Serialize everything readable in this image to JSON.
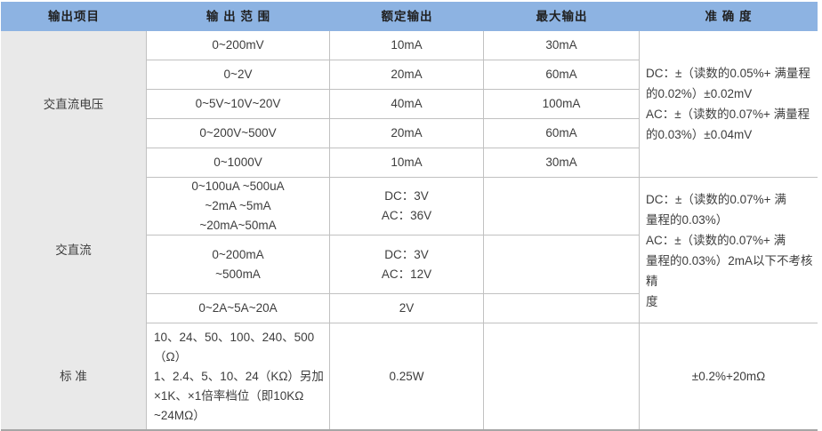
{
  "table": {
    "headers": {
      "item": "输出项目",
      "range": "输 出 范 围",
      "rated": "额定输出",
      "max": "最大输出",
      "accuracy": "准 确 度"
    },
    "sections": [
      {
        "item": "交直流电压",
        "rows": [
          {
            "range": "0~200mV",
            "rated": "10mA",
            "max": "30mA"
          },
          {
            "range": "0~2V",
            "rated": "20mA",
            "max": "60mA"
          },
          {
            "range": "0~5V~10V~20V",
            "rated": "40mA",
            "max": "100mA"
          },
          {
            "range": "0~200V~500V",
            "rated": "20mA",
            "max": "60mA"
          },
          {
            "range": "0~1000V",
            "rated": "10mA",
            "max": "30mA"
          }
        ],
        "accuracy": "DC：±（读数的0.05%+ 满量程\n的0.02%）±0.02mV\nAC：±（读数的0.07%+ 满量程\n的0.03%）±0.04mV"
      },
      {
        "item": "交直流",
        "rows": [
          {
            "range": "0~100uA ~500uA\n~2mA ~5mA\n~20mA~50mA",
            "rated": "DC：3V\nAC：36V",
            "max": ""
          },
          {
            "range": "0~200mA\n~500mA",
            "rated": "DC：3V\nAC：12V",
            "max": ""
          },
          {
            "range": "0~2A~5A~20A",
            "rated": "2V",
            "max": ""
          }
        ],
        "accuracy": "DC：±（读数的0.07%+ 满\n量程的0.03%）\nAC：±（读数的0.07%+ 满\n量程的0.03%）2mA以下不考核精\n度"
      },
      {
        "item": "标  准",
        "rows": [
          {
            "range": "10、24、50、100、240、500\n（Ω）\n1、2.4、5、10、24（KΩ）另加\n×1K、×1倍率档位（即10KΩ\n~24MΩ）",
            "rated": "0.25W",
            "max": ""
          }
        ],
        "accuracy": "±0.2%+20mΩ"
      }
    ],
    "colors": {
      "header_bg": "#8db3e2",
      "item_col_bg": "#e9e9e9",
      "grid_line": "#c1c1c1",
      "bottom_border": "#a6a6a6"
    }
  }
}
